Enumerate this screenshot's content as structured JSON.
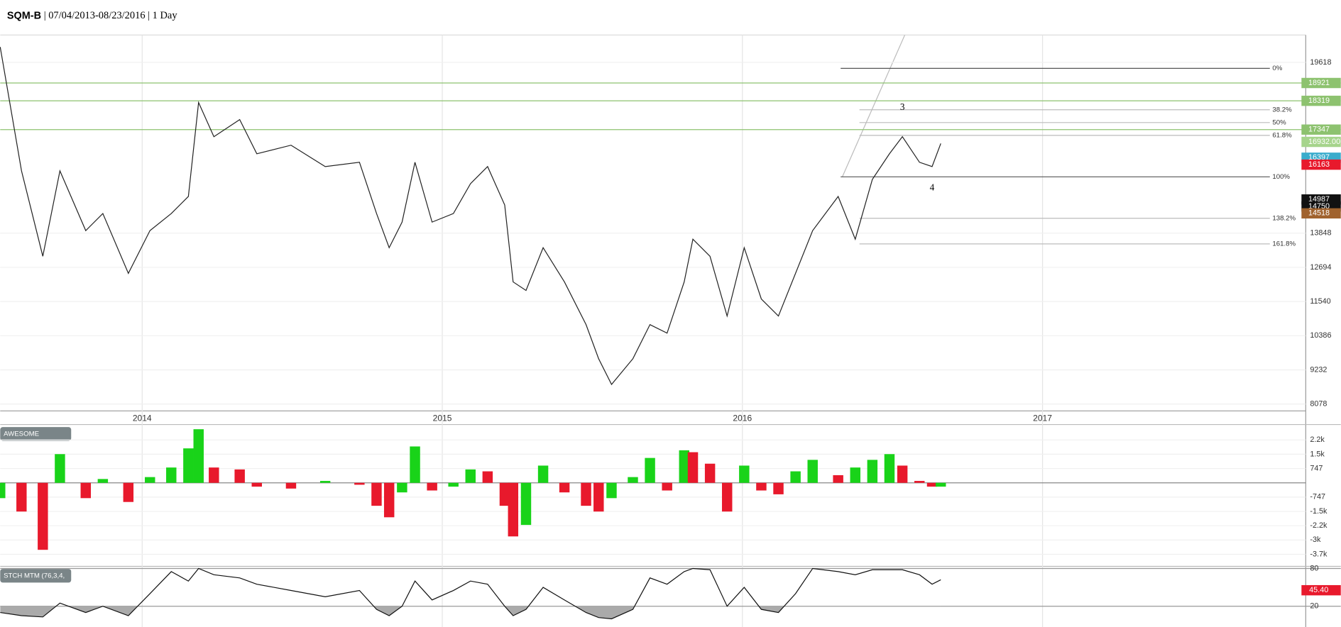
{
  "chart_data": [
    {
      "type": "line",
      "title": "SQM-B",
      "subtitle": "| 07/04/2013-08/23/2016 | 1 Day",
      "color": "#222222",
      "xlim": [
        2013.527,
        2017.877
      ],
      "xticks": [
        2014,
        2015,
        2016,
        2017
      ],
      "ylim": [
        7847,
        20541
      ],
      "yticks": [
        8078,
        9232,
        10386,
        11540,
        12694,
        13848,
        19618
      ],
      "grid": true,
      "x": [
        2013.527,
        2013.598,
        2013.669,
        2013.726,
        2013.812,
        2013.869,
        2013.954,
        2014.026,
        2014.097,
        2014.154,
        2014.188,
        2014.239,
        2014.325,
        2014.382,
        2014.496,
        2014.61,
        2014.724,
        2014.781,
        2014.823,
        2014.866,
        2014.909,
        2014.966,
        2015.037,
        2015.094,
        2015.151,
        2015.208,
        2015.236,
        2015.279,
        2015.336,
        2015.407,
        2015.479,
        2015.521,
        2015.564,
        2015.635,
        2015.692,
        2015.749,
        2015.806,
        2015.835,
        2015.892,
        2015.949,
        2016.006,
        2016.063,
        2016.12,
        2016.177,
        2016.234,
        2016.319,
        2016.376,
        2016.433,
        2016.49,
        2016.533,
        2016.59,
        2016.632,
        2016.661
      ],
      "values": [
        20137,
        15954,
        13069,
        15954,
        13935,
        14512,
        12492,
        13935,
        14512,
        15089,
        18262,
        17108,
        17685,
        16531,
        16820,
        16098,
        16243,
        14512,
        13358,
        14223,
        16243,
        14223,
        14512,
        15521,
        16098,
        14800,
        12203,
        11915,
        13358,
        12203,
        10761,
        9607,
        8741,
        9607,
        10761,
        10473,
        12203,
        13646,
        13069,
        11050,
        13358,
        11627,
        11050,
        12492,
        13935,
        15089,
        13646,
        15666,
        16531,
        17108,
        16243,
        16098,
        16877
      ],
      "hlines": [
        18921,
        18319,
        17347
      ],
      "hline_color": "#8dc26f",
      "price_labels": [
        {
          "value": 18921,
          "color": "#8dc26f"
        },
        {
          "value": 18319,
          "color": "#8dc26f"
        },
        {
          "value": 17347,
          "color": "#8dc26f"
        },
        {
          "value": 16932,
          "label": "16932.00",
          "color": "#a6d48c"
        },
        {
          "value": 16397,
          "color": "#3aaccc"
        },
        {
          "value": 16163,
          "color": "#e8192c"
        },
        {
          "value": 14987,
          "color": "#111111"
        },
        {
          "value": 14750,
          "color": "#111111"
        },
        {
          "value": 14518,
          "color": "#a0622d"
        }
      ],
      "fib_levels": [
        {
          "value": 19416,
          "label": "0%"
        },
        {
          "value": 18016,
          "label": "38.2%"
        },
        {
          "value": 17584,
          "label": "50%"
        },
        {
          "value": 17152,
          "label": "61.8%"
        },
        {
          "value": 15752,
          "label": "100%"
        },
        {
          "value": 14352,
          "label": "138.2%"
        },
        {
          "value": 13487,
          "label": "161.8%"
        }
      ],
      "annotations": [
        {
          "text": "3",
          "x": 2016.533,
          "y": 18080
        },
        {
          "text": "4",
          "x": 2016.632,
          "y": 15360
        }
      ]
    },
    {
      "type": "bar",
      "title": "AWESOME",
      "colors": [
        "#19d319",
        "#e8192c"
      ],
      "ylim": [
        -4230,
        3000
      ],
      "yticks": [
        {
          "value": 2241,
          "label": "2.2k"
        },
        {
          "value": 1494,
          "label": "1.5k"
        },
        747,
        -747,
        {
          "value": -1494,
          "label": "-1.5k"
        },
        {
          "value": -2241,
          "label": "-2.2k"
        },
        {
          "value": -2988,
          "label": "-3k"
        },
        {
          "value": -3735,
          "label": "-3.7k"
        }
      ],
      "values": [
        -800,
        -1500,
        -3500,
        1500,
        -800,
        200,
        -1000,
        300,
        800,
        1800,
        2800,
        800,
        700,
        -200,
        -300,
        100,
        -100,
        -1200,
        -1800,
        -500,
        1900,
        -400,
        -200,
        700,
        600,
        -1200,
        -2800,
        -2200,
        900,
        -500,
        -1200,
        -1500,
        -800,
        300,
        1300,
        -400,
        1700,
        1600,
        1000,
        -1500,
        900,
        -400,
        -600,
        600,
        1200,
        400,
        800,
        1200,
        1500,
        900,
        100,
        -200,
        -200
      ]
    },
    {
      "type": "line",
      "title": "STCH MTM (76,3,4,",
      "color": "#111111",
      "fill_color": "#aaaaaa",
      "ylim": [
        -13,
        82
      ],
      "yticks": [
        80,
        20
      ],
      "last_label": {
        "value": 45.4,
        "label": "45.40",
        "color": "#e8192c"
      },
      "values": [
        10,
        5,
        3,
        25,
        10,
        20,
        5,
        40,
        75,
        60,
        80,
        70,
        65,
        55,
        45,
        35,
        45,
        15,
        5,
        20,
        60,
        30,
        45,
        60,
        55,
        20,
        5,
        15,
        50,
        30,
        10,
        2,
        0,
        15,
        65,
        55,
        75,
        80,
        78,
        20,
        50,
        15,
        10,
        40,
        80,
        75,
        70,
        78,
        78,
        78,
        70,
        55,
        62
      ]
    }
  ]
}
